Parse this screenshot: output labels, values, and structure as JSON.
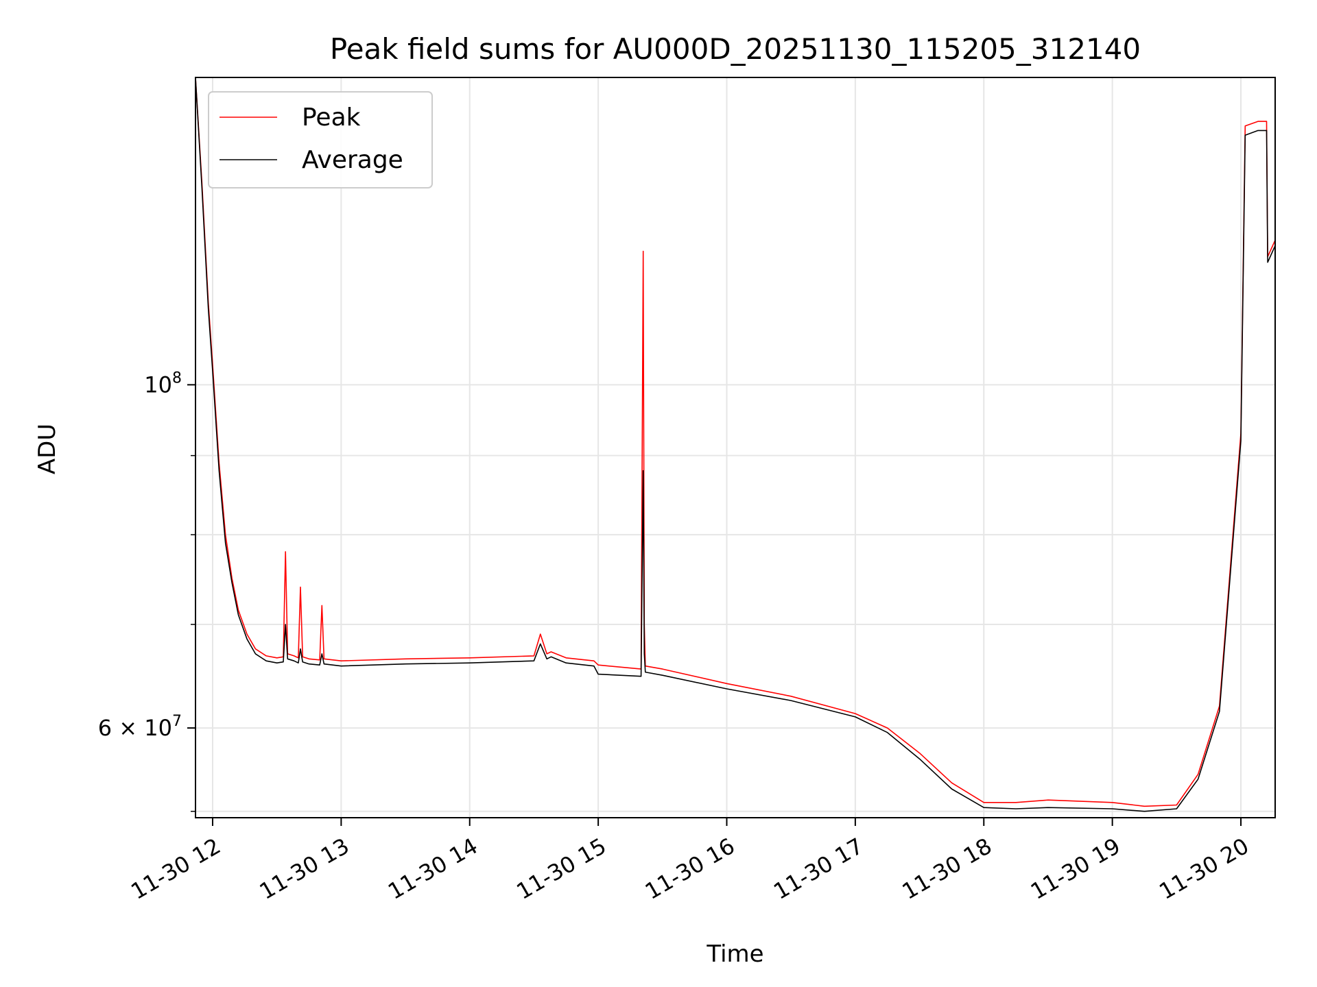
{
  "chart_data": {
    "type": "line",
    "title": "Peak field sums for AU000D_20251130_115205_312140",
    "xlabel": "Time",
    "ylabel": "ADU",
    "xscale": "time",
    "yscale": "log",
    "grid": true,
    "legend_placement": "upper left",
    "xlim": [
      "2025-11-30 11:52",
      "2025-11-30 20:16"
    ],
    "ylim": [
      52500000,
      158000000
    ],
    "x_ticks": [
      {
        "value": "2025-11-30 12:00",
        "label": "11-30 12"
      },
      {
        "value": "2025-11-30 13:00",
        "label": "11-30 13"
      },
      {
        "value": "2025-11-30 14:00",
        "label": "11-30 14"
      },
      {
        "value": "2025-11-30 15:00",
        "label": "11-30 15"
      },
      {
        "value": "2025-11-30 16:00",
        "label": "11-30 16"
      },
      {
        "value": "2025-11-30 17:00",
        "label": "11-30 17"
      },
      {
        "value": "2025-11-30 18:00",
        "label": "11-30 18"
      },
      {
        "value": "2025-11-30 19:00",
        "label": "11-30 19"
      },
      {
        "value": "2025-11-30 20:00",
        "label": "11-30 20"
      }
    ],
    "y_ticks": [
      {
        "value": 100000000,
        "base": "10",
        "exp": "8"
      },
      {
        "value": 60000000,
        "base": "6 × 10",
        "exp": "7"
      }
    ],
    "y_minor_ticks": [
      53000000,
      70000000,
      80000000,
      90000000
    ],
    "series": [
      {
        "name": "Peak",
        "color": "#ff0000",
        "x": [
          "2025-11-30 11:52",
          "2025-11-30 11:55",
          "2025-11-30 11:58",
          "2025-11-30 12:00",
          "2025-11-30 12:03",
          "2025-11-30 12:06",
          "2025-11-30 12:09",
          "2025-11-30 12:12",
          "2025-11-30 12:16",
          "2025-11-30 12:20",
          "2025-11-30 12:25",
          "2025-11-30 12:30",
          "2025-11-30 12:33",
          "2025-11-30 12:34",
          "2025-11-30 12:35",
          "2025-11-30 12:38",
          "2025-11-30 12:40",
          "2025-11-30 12:41",
          "2025-11-30 12:42",
          "2025-11-30 12:45",
          "2025-11-30 12:50",
          "2025-11-30 12:51",
          "2025-11-30 12:52",
          "2025-11-30 13:00",
          "2025-11-30 13:30",
          "2025-11-30 14:00",
          "2025-11-30 14:30",
          "2025-11-30 14:33",
          "2025-11-30 14:36",
          "2025-11-30 14:38",
          "2025-11-30 14:45",
          "2025-11-30 14:58",
          "2025-11-30 15:00",
          "2025-11-30 15:20",
          "2025-11-30 15:21",
          "2025-11-30 15:21.5",
          "2025-11-30 15:22",
          "2025-11-30 15:30",
          "2025-11-30 16:00",
          "2025-11-30 16:30",
          "2025-11-30 17:00",
          "2025-11-30 17:15",
          "2025-11-30 17:30",
          "2025-11-30 17:45",
          "2025-11-30 18:00",
          "2025-11-30 18:15",
          "2025-11-30 18:30",
          "2025-11-30 19:00",
          "2025-11-30 19:15",
          "2025-11-30 19:30",
          "2025-11-30 19:40",
          "2025-11-30 19:50",
          "2025-11-30 20:00",
          "2025-11-30 20:02",
          "2025-11-30 20:08",
          "2025-11-30 20:12",
          "2025-11-30 20:12.5",
          "2025-11-30 20:16"
        ],
        "values": [
          158000000,
          135000000,
          113000000,
          103000000,
          89000000,
          80000000,
          75000000,
          71500000,
          69000000,
          67500000,
          66800000,
          66600000,
          66700000,
          78000000,
          67000000,
          66800000,
          66600000,
          74000000,
          66700000,
          66500000,
          66400000,
          72000000,
          66500000,
          66300000,
          66500000,
          66600000,
          66800000,
          69000000,
          67000000,
          67200000,
          66600000,
          66300000,
          65900000,
          65500000,
          122000000,
          70000000,
          65800000,
          65500000,
          64100000,
          62900000,
          61300000,
          60000000,
          57800000,
          55300000,
          53700000,
          53700000,
          53900000,
          53700000,
          53400000,
          53500000,
          56000000,
          62000000,
          93000000,
          147000000,
          148000000,
          148000000,
          121000000,
          124000000
        ]
      },
      {
        "name": "Average",
        "color": "#000000",
        "x": [
          "2025-11-30 11:52",
          "2025-11-30 11:55",
          "2025-11-30 11:58",
          "2025-11-30 12:00",
          "2025-11-30 12:03",
          "2025-11-30 12:06",
          "2025-11-30 12:09",
          "2025-11-30 12:12",
          "2025-11-30 12:16",
          "2025-11-30 12:20",
          "2025-11-30 12:25",
          "2025-11-30 12:30",
          "2025-11-30 12:33",
          "2025-11-30 12:34",
          "2025-11-30 12:35",
          "2025-11-30 12:38",
          "2025-11-30 12:40",
          "2025-11-30 12:41",
          "2025-11-30 12:42",
          "2025-11-30 12:45",
          "2025-11-30 12:50",
          "2025-11-30 12:51",
          "2025-11-30 12:52",
          "2025-11-30 13:00",
          "2025-11-30 13:30",
          "2025-11-30 14:00",
          "2025-11-30 14:30",
          "2025-11-30 14:33",
          "2025-11-30 14:36",
          "2025-11-30 14:38",
          "2025-11-30 14:45",
          "2025-11-30 14:58",
          "2025-11-30 15:00",
          "2025-11-30 15:20",
          "2025-11-30 15:21",
          "2025-11-30 15:21.5",
          "2025-11-30 15:22",
          "2025-11-30 15:30",
          "2025-11-30 16:00",
          "2025-11-30 16:30",
          "2025-11-30 17:00",
          "2025-11-30 17:15",
          "2025-11-30 17:30",
          "2025-11-30 17:45",
          "2025-11-30 18:00",
          "2025-11-30 18:15",
          "2025-11-30 18:30",
          "2025-11-30 19:00",
          "2025-11-30 19:15",
          "2025-11-30 19:30",
          "2025-11-30 19:40",
          "2025-11-30 19:50",
          "2025-11-30 20:00",
          "2025-11-30 20:02",
          "2025-11-30 20:08",
          "2025-11-30 20:12",
          "2025-11-30 20:12.5",
          "2025-11-30 20:16"
        ],
        "values": [
          158000000,
          134000000,
          112000000,
          102000000,
          88000000,
          79000000,
          74500000,
          71000000,
          68500000,
          67000000,
          66300000,
          66100000,
          66200000,
          70000000,
          66500000,
          66300000,
          66100000,
          67500000,
          66200000,
          66000000,
          65900000,
          67000000,
          66000000,
          65800000,
          66000000,
          66100000,
          66300000,
          68000000,
          66500000,
          66700000,
          66100000,
          65800000,
          65000000,
          64800000,
          88000000,
          67000000,
          65200000,
          64900000,
          63600000,
          62500000,
          61000000,
          59600000,
          57300000,
          54800000,
          53300000,
          53200000,
          53300000,
          53200000,
          53000000,
          53200000,
          55600000,
          61500000,
          92000000,
          145000000,
          146000000,
          146000000,
          120000000,
          123000000
        ]
      }
    ]
  }
}
